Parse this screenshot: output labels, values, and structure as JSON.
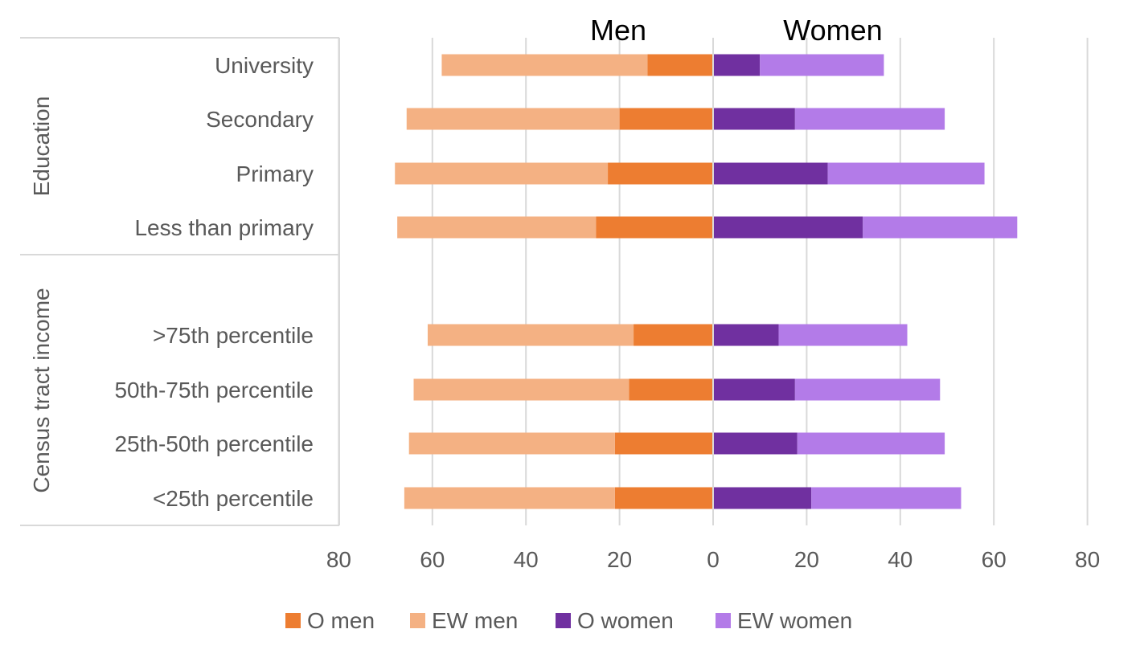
{
  "chart_data": {
    "type": "bar",
    "orientation": "horizontal-butterfly",
    "left_title": "Men",
    "right_title": "Women",
    "axis": {
      "min": 0,
      "max": 80,
      "ticks": [
        "80",
        "60",
        "40",
        "20",
        "0",
        "20",
        "40",
        "60",
        "80"
      ],
      "tick_values": [
        -80,
        -60,
        -40,
        -20,
        0,
        20,
        40,
        60,
        80
      ]
    },
    "groups": [
      {
        "name": "Education",
        "categories": [
          "University",
          "Secondary",
          "Primary",
          "Less than primary"
        ]
      },
      {
        "name": "Census tract income",
        "categories": [
          ">75th percentile",
          "50th-75th percentile",
          "25th-50th percentile",
          "<25th percentile"
        ]
      }
    ],
    "series": [
      {
        "name": "O men",
        "side": "left",
        "color": "#ED7D31",
        "values": [
          14,
          20,
          22.5,
          25,
          17,
          18,
          21,
          21
        ]
      },
      {
        "name": "EW men",
        "side": "left",
        "color": "#F4B183",
        "values": [
          44,
          45.5,
          45.5,
          42.5,
          44,
          46,
          44,
          45
        ]
      },
      {
        "name": "O women",
        "side": "right",
        "color": "#7030A0",
        "values": [
          10,
          17.5,
          24.5,
          32,
          14,
          17.5,
          18,
          21
        ]
      },
      {
        "name": "EW women",
        "side": "right",
        "color": "#B37BE8",
        "values": [
          26.5,
          32,
          33.5,
          33,
          27.5,
          31,
          31.5,
          32
        ]
      }
    ],
    "legend": [
      "O men",
      "EW men",
      "O women",
      "EW women"
    ],
    "legend_position": "bottom",
    "grid": true
  }
}
